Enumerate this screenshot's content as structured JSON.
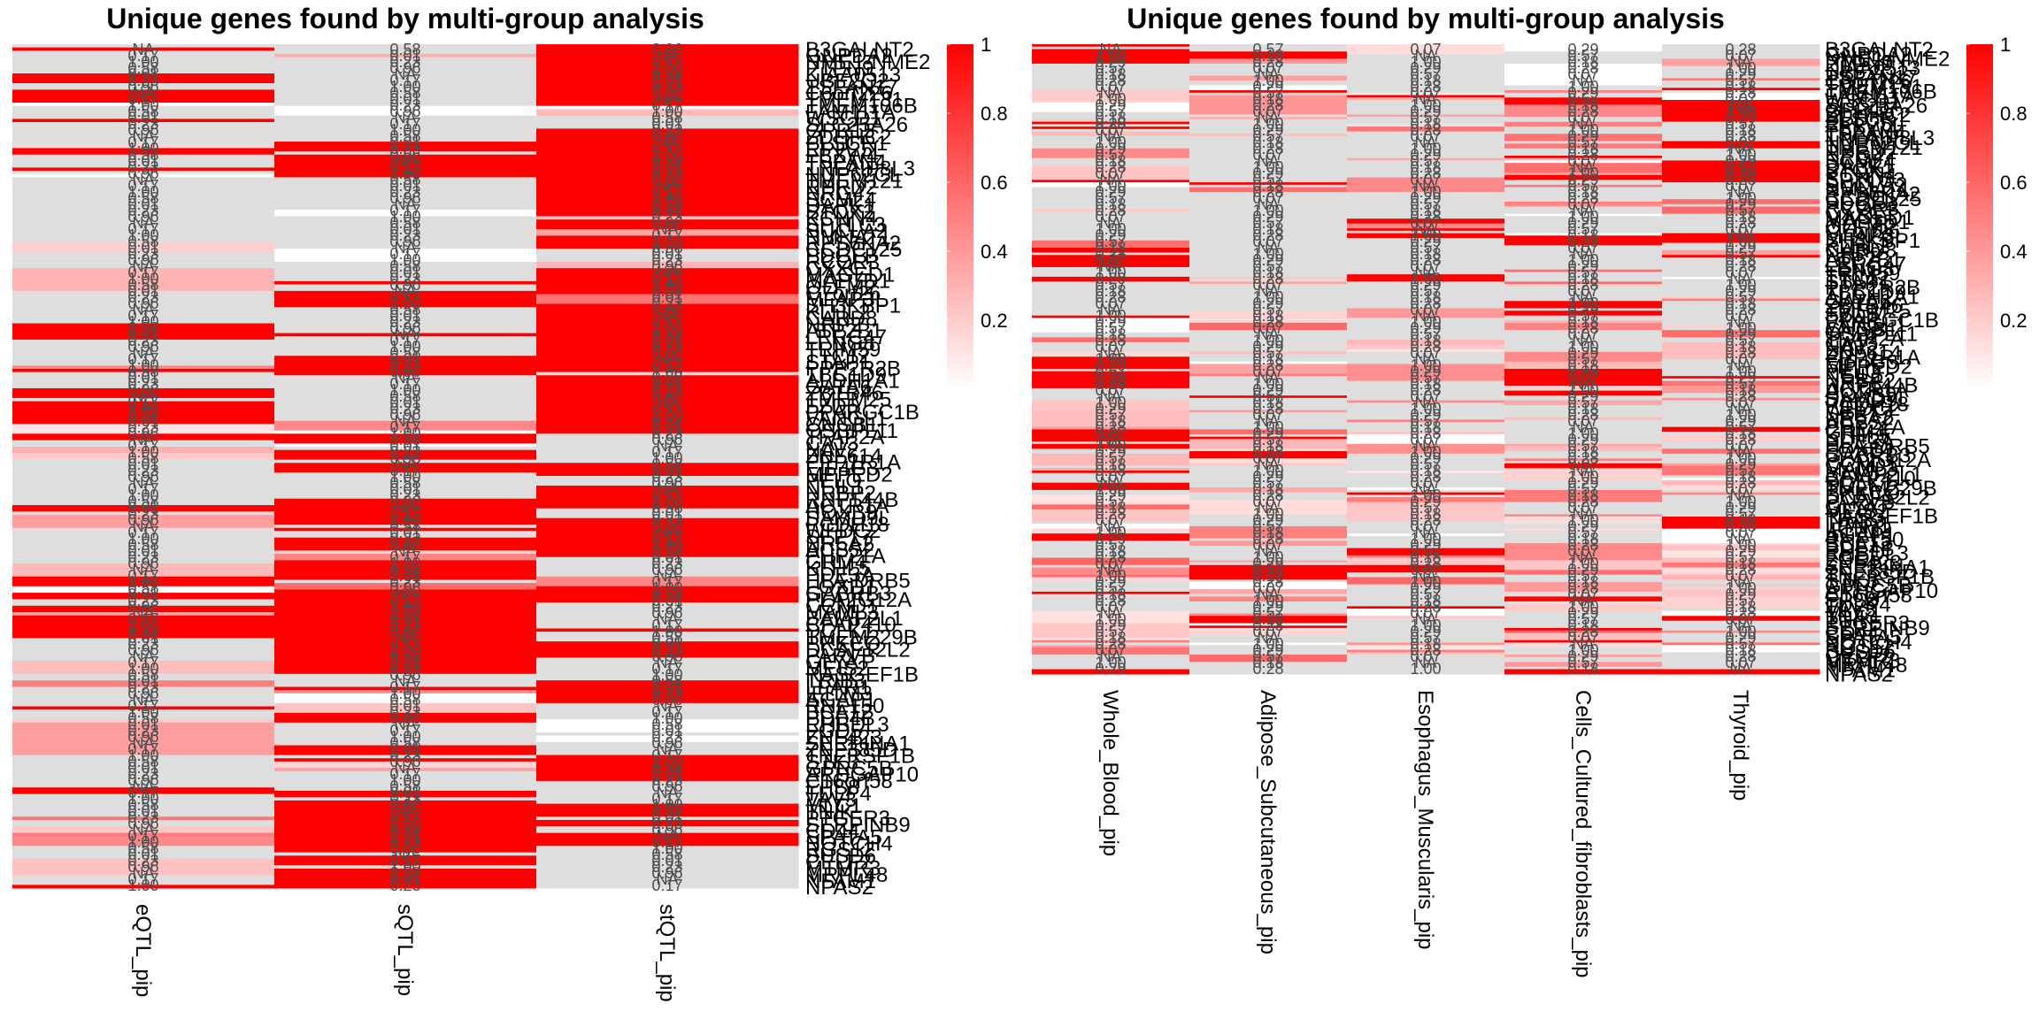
{
  "colors": {
    "na": "#dedede",
    "low": "#ffffff",
    "high": "#ff0000",
    "cell_text": "#4d4d4d"
  },
  "chart_data": [
    {
      "type": "heatmap",
      "title": "Unique genes found by multi-group analysis",
      "columns": [
        "eQTL_pip",
        "sQTL_pip",
        "stQTL_pip"
      ],
      "legend": {
        "range": [
          0,
          1
        ],
        "ticks": [
          "0.2",
          "0.4",
          "0.6",
          "0.8",
          "1"
        ]
      },
      "row_labels": [
        "B3GALNT2",
        "GNPDA2",
        "NME1-NME2",
        "PTPN9",
        "KIAA0513",
        "UBE2Q2",
        "TSPAN17",
        "C6orf226",
        "TMEM131",
        "TMEM106B",
        "FAM111A",
        "WSCD1",
        "SLC25A26",
        "GPR15",
        "ZDHHC2",
        "PLSCR1",
        "RPP25L",
        "FBXW4",
        "TSPAN4",
        "TNFAIP8L3",
        "NUP62CL",
        "TMEM121",
        "RPRD2",
        "NRG4",
        "SCML4",
        "DAPK1",
        "STOX2",
        "KCNN4",
        "SPTLC3",
        "SUCLA2",
        "NMNAT1",
        "RPS6KA2",
        "CCDC125",
        "PDGFB",
        "RCOR3",
        "CXXC1",
        "MAGED1",
        "MAP7D1",
        "OLFM2",
        "C7orf26",
        "MFAP3L",
        "SH3KBP1",
        "KLHL2",
        "CARD8",
        "NRP2",
        "ATP2B1",
        "LRRC47",
        "LENG8",
        "TRIM59",
        "TTC12",
        "STAP1",
        "PPP2R2B",
        "TBC1D9",
        "ALDH1A1",
        "GATA6",
        "ZBTB46",
        "TMEM25",
        "FZD5",
        "PPARGC1B",
        "VANGL1",
        "CNGB1",
        "OSBPL11",
        "TFAP2A",
        "CA13",
        "NAV2",
        "ZNF614",
        "PPP1R1A",
        "EIF4G3",
        "MPPED2",
        "PELO",
        "NEIL1",
        "NRBP2",
        "RNF144B",
        "ACTR1A",
        "HOXB9",
        "SAMD9L",
        "PCDH18",
        "WFDC2",
        "SEPT7",
        "NR5A2",
        "ACSS2",
        "PHF21A",
        "GRM4",
        "KLHL5",
        "PDE3A",
        "HLA-DRB5",
        "FOXD1",
        "GABRB3",
        "PLA2G12A",
        "CCND1",
        "MAML3",
        "BAIAP2L1",
        "CFAP410",
        "DCLK1",
        "TMEM229B",
        "PRKCQ",
        "DCAF12L2",
        "PARVB",
        "GLYAT",
        "MEIS2",
        "RASGEF1B",
        "TRIB3",
        "LPAR1",
        "IFITM3",
        "AGAP1",
        "RNF150",
        "BCAT2",
        "PDE4B",
        "RHBDL3",
        "FGD5",
        "ZNF423",
        "SERPINA1",
        "ZNF385D",
        "TNFRSF1B",
        "STK3",
        "GPRC5B",
        "ARHGAP10",
        "C16orf58",
        "EPS8",
        "TULP4",
        "VAV3",
        "MLC1",
        "TNIK",
        "PTGER3",
        "SERPINB9",
        "CD44",
        "SPATA5",
        "NOTCH4",
        "RGS12",
        "SUSD6",
        "CELF2",
        "MTMR3",
        "MRPL48",
        "NFAM1",
        "NPAS2"
      ],
      "cell_text_samples": [
        "NA",
        "0.17",
        "1.00",
        "0.58",
        "0.01",
        "0.23",
        "0.96"
      ]
    },
    {
      "type": "heatmap",
      "title": "Unique genes found by multi-group analysis",
      "columns": [
        "Whole_Blood_pip",
        "Adipose_Subcutaneous_pip",
        "Esophagus_Muscularis_pip",
        "Cells_Cultured_fibroblasts_pip",
        "Thyroid_pip"
      ],
      "legend": {
        "range": [
          0,
          1
        ],
        "ticks": [
          "0.2",
          "0.4",
          "0.6",
          "0.8",
          "1"
        ]
      },
      "row_labels": [
        "B3GALNT2",
        "GNPDA2",
        "NME1-NME2",
        "PTPN9",
        "KIAA0513",
        "UBE2Q2",
        "TSPAN17",
        "C6orf226",
        "TMEM131",
        "TMEM106B",
        "FAM111A",
        "WSCD1",
        "SLC25A26",
        "GPR15",
        "ZDHHC2",
        "PLSCR1",
        "RPP25L",
        "FBXW4",
        "TSPAN4",
        "TNFAIP8L3",
        "NUP62CL",
        "TMEM121",
        "RPRD2",
        "NRG4",
        "SCML4",
        "DAPK1",
        "STOX2",
        "KCNN4",
        "SPTLC3",
        "SUCLA2",
        "NMNAT1",
        "RPS6KA2",
        "CCDC125",
        "PDGFB",
        "RCOR3",
        "CXXC1",
        "MAGED1",
        "MAP7D1",
        "OLFM2",
        "C7orf26",
        "MFAP3L",
        "SH3KBP1",
        "KLHL2",
        "CARD8",
        "NRP2",
        "ATP2B1",
        "LRRC47",
        "LENG8",
        "TRIM59",
        "TTC12",
        "STAP1",
        "PPP2R2B",
        "TBC1D9",
        "ALDH1A1",
        "GATA6",
        "ZBTB46",
        "TMEM25",
        "FZD5",
        "PPARGC1B",
        "VANGL1",
        "CNGB1",
        "OSBPL11",
        "TFAP2A",
        "CA13",
        "NAV2",
        "ZNF614",
        "PPP1R1A",
        "EIF4G3",
        "MPPED2",
        "PELO",
        "NEIL1",
        "NRBP2",
        "RNF144B",
        "ACTR1A",
        "HOXB9",
        "SAMD9L",
        "PCDH18",
        "WFDC2",
        "SEPT7",
        "NR5A2",
        "ACSS2",
        "PHF21A",
        "GRM4",
        "KLHL5",
        "PDE3A",
        "HLA-DRB5",
        "FOXD1",
        "GABRB3",
        "PLA2G12A",
        "CCND1",
        "MAML3",
        "BAIAP2L1",
        "CFAP410",
        "DCLK1",
        "TMEM229B",
        "PRKCQ",
        "DCAF12L2",
        "PARVB",
        "GLYAT",
        "MEIS2",
        "RASGEF1B",
        "TRIB3",
        "LPAR1",
        "IFITM3",
        "AGAP1",
        "RNF150",
        "BCAT2",
        "PDE4B",
        "RHBDL3",
        "FGD5",
        "ZNF423",
        "SERPINA1",
        "ZNF385D",
        "TNFRSF1B",
        "STK3",
        "GPRC5B",
        "ARHGAP10",
        "C16orf58",
        "EPS8",
        "TULP4",
        "VAV3",
        "MLC1",
        "TNIK",
        "PTGER3",
        "SERPINB9",
        "CD44",
        "SPATA5",
        "NOTCH4",
        "RGS12",
        "SUSD6",
        "CELF2",
        "MTMR3",
        "MRPL48",
        "NFAM1",
        "NPAS2"
      ],
      "cell_text_samples": [
        "NA",
        "1.00",
        "0.29",
        "0.57",
        "0.18",
        "0.28",
        "0.07"
      ]
    }
  ]
}
